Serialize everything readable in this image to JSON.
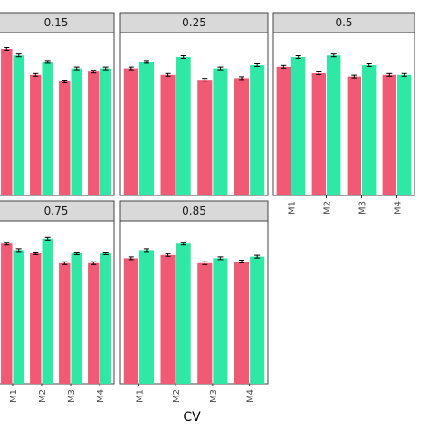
{
  "chart_data": {
    "type": "bar",
    "layout": "faceted",
    "xlabel": "CV",
    "ylabel": "",
    "categories": [
      "M1",
      "M2",
      "M3",
      "M4"
    ],
    "ylim": [
      0,
      1
    ],
    "colors": {
      "series_a": "#f05a74",
      "series_b": "#2fe8a6",
      "panel_border": "#444444",
      "strip_fill": "#d9d9d9",
      "error_bar": "#000000"
    },
    "facets": [
      {
        "label": "0.15",
        "series": [
          {
            "values": [
              0.9,
              0.74,
              0.7,
              0.76
            ]
          },
          {
            "values": [
              0.86,
              0.82,
              0.78,
              0.78
            ]
          }
        ]
      },
      {
        "label": "0.25",
        "series": [
          {
            "values": [
              0.78,
              0.74,
              0.71,
              0.72
            ]
          },
          {
            "values": [
              0.82,
              0.85,
              0.78,
              0.8
            ]
          }
        ]
      },
      {
        "label": "0.5",
        "series": [
          {
            "values": [
              0.79,
              0.75,
              0.73,
              0.74
            ]
          },
          {
            "values": [
              0.85,
              0.86,
              0.8,
              0.74
            ]
          }
        ]
      },
      {
        "label": "0.75",
        "series": [
          {
            "values": [
              0.86,
              0.8,
              0.74,
              0.74
            ]
          },
          {
            "values": [
              0.82,
              0.89,
              0.8,
              0.8
            ]
          }
        ]
      },
      {
        "label": "0.85",
        "series": [
          {
            "values": [
              0.77,
              0.79,
              0.74,
              0.75
            ]
          },
          {
            "values": [
              0.82,
              0.86,
              0.77,
              0.78
            ]
          }
        ]
      }
    ]
  }
}
